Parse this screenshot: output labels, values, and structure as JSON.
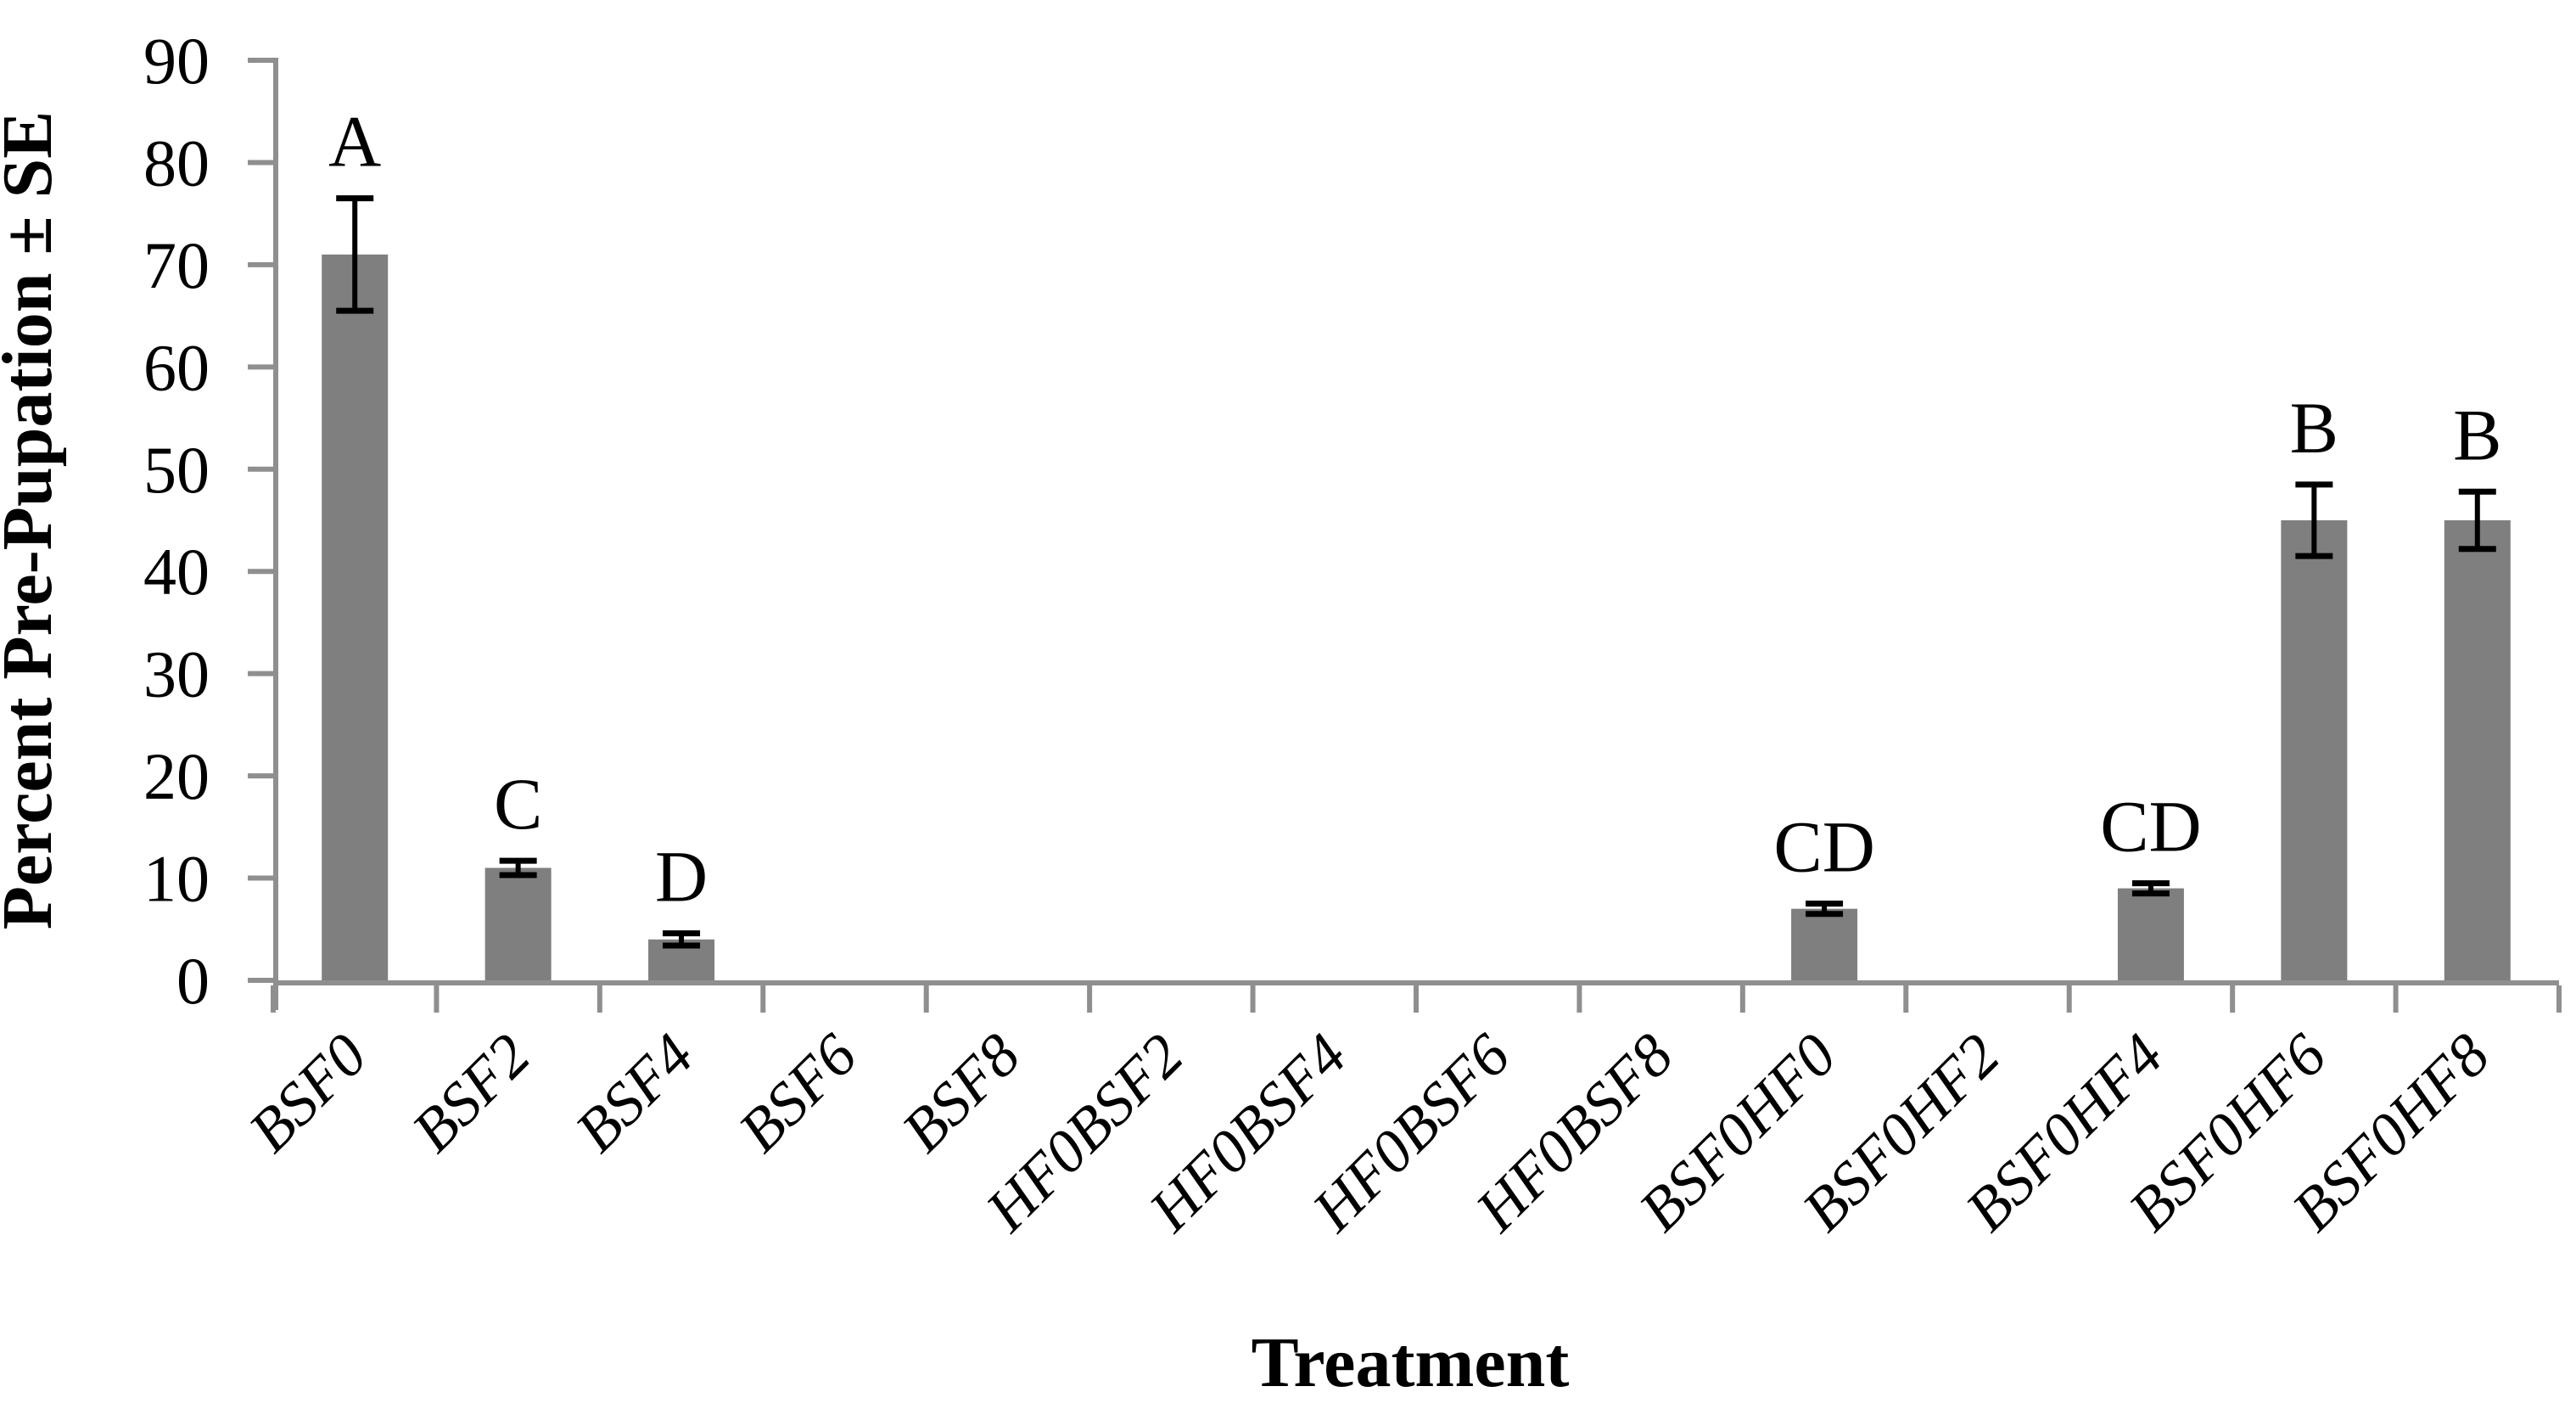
{
  "chart_data": {
    "type": "bar",
    "title": "",
    "xlabel": "Treatment",
    "ylabel": "Percent Pre-Pupation ± SE",
    "categories": [
      "BSF0",
      "BSF2",
      "BSF4",
      "BSF6",
      "BSF8",
      "HF0BSF2",
      "HF0BSF4",
      "HF0BSF6",
      "HF0BSF8",
      "BSF0HF0",
      "BSF0HF2",
      "BSF0HF4",
      "BSF0HF6",
      "BSF0HF8"
    ],
    "values": [
      71,
      11,
      4,
      0,
      0,
      0,
      0,
      0,
      0,
      7,
      0,
      9,
      45,
      45
    ],
    "errors": [
      5.5,
      0.7,
      0.6,
      0,
      0,
      0,
      0,
      0,
      0,
      0.5,
      0,
      0.5,
      3.5,
      2.8
    ],
    "significance_letters": [
      "A",
      "C",
      "D",
      "",
      "",
      "",
      "",
      "",
      "",
      "CD",
      "",
      "CD",
      "B",
      "B"
    ],
    "ylim": [
      0,
      90
    ],
    "yticks": [
      0,
      10,
      20,
      30,
      40,
      50,
      60,
      70,
      80,
      90
    ],
    "grid": false,
    "legend": null
  },
  "colors": {
    "bar": "#7f7f7f",
    "axis": "#8f8f8f",
    "error_bar": "#000000",
    "text": "#000000",
    "background": "#ffffff"
  }
}
